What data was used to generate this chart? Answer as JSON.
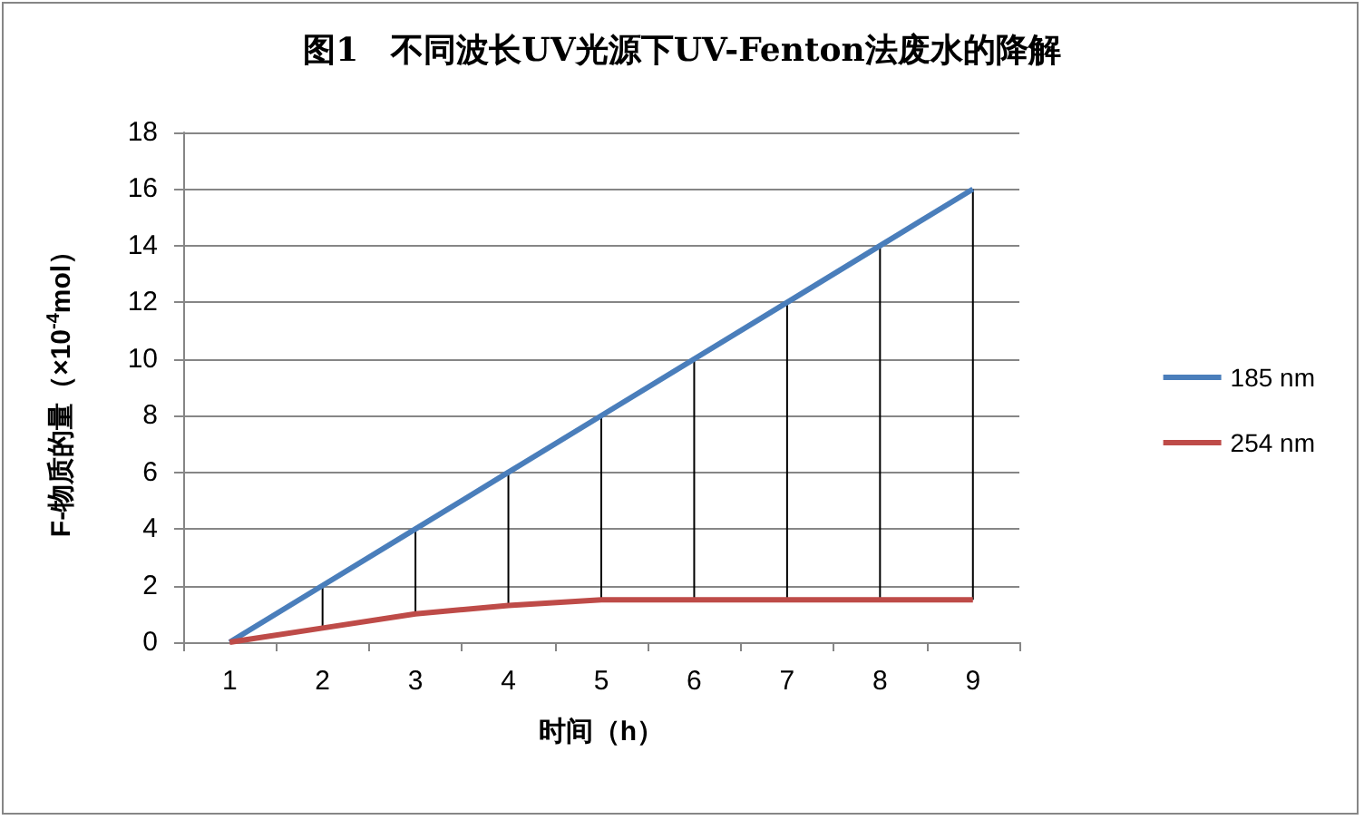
{
  "chart_data": {
    "type": "line",
    "title": "图1　不同波长UV光源下UV-Fenton法废水的降解",
    "xlabel": "时间（h）",
    "ylabel": "F-物质的量（×10$^{-4}$mol）",
    "categories": [
      "1",
      "2",
      "3",
      "4",
      "5",
      "6",
      "7",
      "8",
      "9"
    ],
    "series": [
      {
        "name": "185 nm",
        "color": "#4a7ebb",
        "values": [
          0,
          2,
          4,
          6,
          8,
          10,
          12,
          14,
          16
        ],
        "errors": [
          null,
          [
            0.5,
            2
          ],
          [
            1,
            4
          ],
          [
            1.3,
            6
          ],
          [
            1.5,
            8
          ],
          [
            1.5,
            10
          ],
          [
            1.5,
            12
          ],
          [
            1.5,
            14
          ],
          [
            1.5,
            16
          ]
        ]
      },
      {
        "name": "254 nm",
        "color": "#be4b48",
        "values": [
          0,
          0.5,
          1,
          1.3,
          1.5,
          1.5,
          1.5,
          1.5,
          1.5
        ]
      }
    ],
    "ylim": [
      0,
      18
    ],
    "yticks": [
      0,
      2,
      4,
      6,
      8,
      10,
      12,
      14,
      16,
      18
    ],
    "grid": "y",
    "legend": "right",
    "marker": "none",
    "line_style": "solid"
  }
}
